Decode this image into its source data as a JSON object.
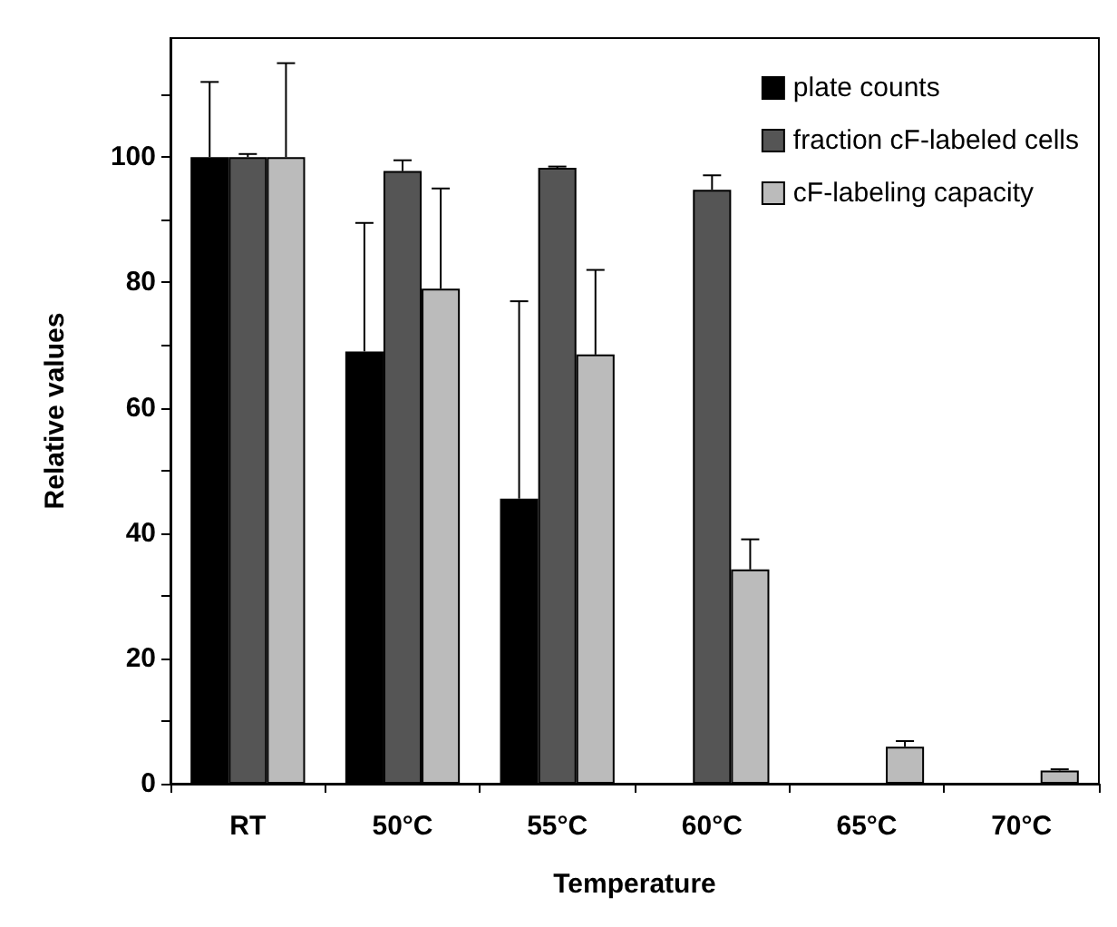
{
  "chart_data": {
    "type": "bar",
    "xlabel": "Temperature",
    "ylabel": "Relative values",
    "categories": [
      "RT",
      "50°C",
      "55°C",
      "60°C",
      "65°C",
      "70°C"
    ],
    "series": [
      {
        "name": "plate counts",
        "color": "#000000",
        "values": [
          100,
          69,
          45.5,
          null,
          null,
          null
        ],
        "errors": [
          [
            100,
            112
          ],
          [
            69,
            89.5
          ],
          [
            45.5,
            77
          ],
          null,
          null,
          null
        ]
      },
      {
        "name": "fraction cF-labeled cells",
        "color": "#555555",
        "values": [
          100,
          97.8,
          98.3,
          94.8,
          null,
          null
        ],
        "errors": [
          [
            100,
            100.5
          ],
          [
            97.8,
            99.5
          ],
          [
            98.3,
            98.5
          ],
          [
            94.8,
            97.1
          ],
          null,
          null
        ]
      },
      {
        "name": "cF-labeling capacity",
        "color": "#bbbbbb",
        "values": [
          100,
          79,
          68.5,
          34.2,
          5.9,
          2.1
        ],
        "errors": [
          [
            100,
            115
          ],
          [
            79,
            95
          ],
          [
            68.5,
            82
          ],
          [
            34.2,
            39
          ],
          [
            5.9,
            6.8
          ],
          [
            2.1,
            2.3
          ]
        ]
      }
    ],
    "ylim": [
      0,
      119
    ],
    "yticks": [
      0,
      {
        "value": 10,
        "label": null
      },
      20,
      {
        "value": 30,
        "label": null
      },
      40,
      {
        "value": 50,
        "label": null
      },
      60,
      {
        "value": 70,
        "label": null
      },
      80,
      {
        "value": 90,
        "label": null
      },
      100,
      {
        "value": 110,
        "label": null
      }
    ],
    "grid": false,
    "legend": "top right"
  }
}
